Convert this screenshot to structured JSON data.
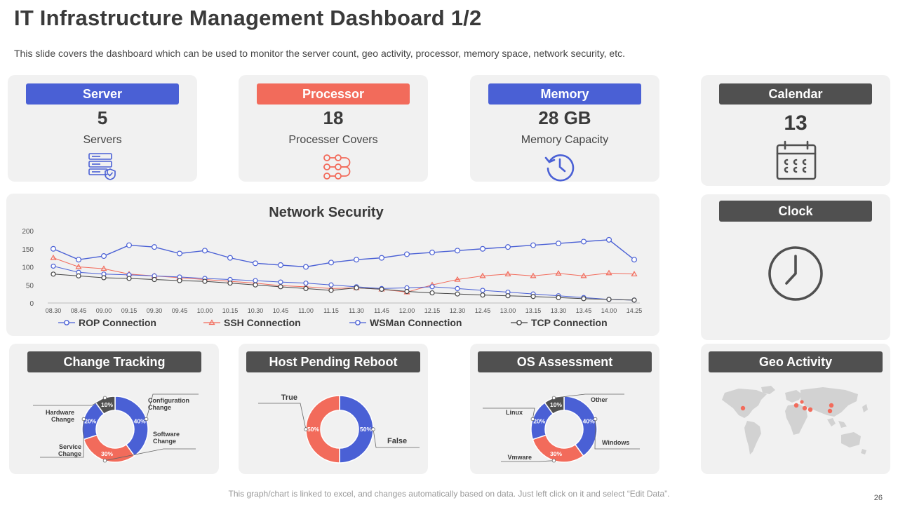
{
  "header": {
    "title": "IT Infrastructure Management Dashboard 1/2",
    "subtitle": "This slide covers the dashboard which can be used to monitor the server count, geo activity, processor, memory space, network security, etc."
  },
  "cards": {
    "server": {
      "label": "Server",
      "value": "5",
      "caption": "Servers",
      "icon": "server-shield-icon"
    },
    "processor": {
      "label": "Processor",
      "value": "18",
      "caption": "Processer Covers",
      "icon": "process-flow-icon"
    },
    "memory": {
      "label": "Memory",
      "value": "28 GB",
      "caption": "Memory Capacity",
      "icon": "history-icon"
    },
    "calendar": {
      "label": "Calendar",
      "value": "13",
      "icon": "calendar-icon"
    },
    "clock": {
      "label": "Clock",
      "icon": "clock-icon"
    },
    "change_tracking": {
      "label": "Change Tracking"
    },
    "host_pending_reboot": {
      "label": "Host Pending Reboot"
    },
    "os_assessment": {
      "label": "OS Assessment"
    },
    "geo_activity": {
      "label": "Geo Activity",
      "icon": "world-map-icon"
    }
  },
  "colors": {
    "blue": "#4a60d5",
    "red": "#f26b5b",
    "dark": "#505050",
    "gray": "#444444"
  },
  "chart_data": [
    {
      "type": "line",
      "title": "Network Security",
      "x": [
        "08.30",
        "08.45",
        "09.00",
        "09.15",
        "09.30",
        "09.45",
        "10.00",
        "10.15",
        "10.30",
        "10.45",
        "11.00",
        "11.15",
        "11.30",
        "11.45",
        "12.00",
        "12.15",
        "12.30",
        "12.45",
        "13.00",
        "13.15",
        "13.30",
        "13.45",
        "14.00",
        "14.25"
      ],
      "ylim": [
        0,
        200
      ],
      "yticks": [
        0,
        50,
        100,
        150,
        200
      ],
      "legend": "bottom",
      "series": [
        {
          "name": "ROP Connection",
          "color": "#4a60d5",
          "marker": "circle",
          "values": [
            150,
            120,
            130,
            160,
            155,
            137,
            145,
            125,
            110,
            105,
            100,
            112,
            120,
            125,
            135,
            140,
            145,
            150,
            155,
            160,
            165,
            170,
            175,
            120
          ]
        },
        {
          "name": "SSH Connection",
          "color": "#f26b5b",
          "marker": "triangle",
          "values": [
            125,
            100,
            95,
            80,
            75,
            70,
            65,
            60,
            55,
            48,
            45,
            40,
            42,
            38,
            30,
            50,
            65,
            75,
            80,
            75,
            82,
            75,
            83,
            80
          ]
        },
        {
          "name": "WSMan Connection",
          "color": "#4a60d5",
          "marker": "open-circle",
          "values": [
            102,
            85,
            80,
            78,
            75,
            72,
            68,
            65,
            62,
            58,
            55,
            50,
            45,
            40,
            42,
            45,
            40,
            35,
            30,
            25,
            20,
            15,
            10,
            8
          ]
        },
        {
          "name": "TCP Connection",
          "color": "#444444",
          "marker": "open-circle",
          "values": [
            80,
            75,
            70,
            68,
            65,
            62,
            60,
            55,
            50,
            45,
            40,
            35,
            42,
            38,
            32,
            28,
            25,
            22,
            20,
            18,
            15,
            12,
            10,
            8
          ]
        }
      ]
    },
    {
      "type": "pie",
      "title": "Change Tracking",
      "labels": [
        "Configuration Change",
        "Software Change",
        "Service Change",
        "Hardware Change"
      ],
      "values": [
        40,
        30,
        20,
        10
      ],
      "slice_labels": [
        "40%",
        "30%",
        "20%",
        "10%"
      ],
      "colors": [
        "#4a60d5",
        "#f26b5b",
        "#4a60d5",
        "#505050"
      ]
    },
    {
      "type": "pie",
      "title": "Host Pending Reboot",
      "labels": [
        "False",
        "True"
      ],
      "values": [
        50,
        50
      ],
      "slice_labels": [
        "50%",
        "50%"
      ],
      "colors": [
        "#4a60d5",
        "#f26b5b"
      ]
    },
    {
      "type": "pie",
      "title": "OS Assessment",
      "labels": [
        "Windows",
        "Vmware",
        "Linux",
        "Other"
      ],
      "values": [
        40,
        30,
        20,
        10
      ],
      "slice_labels": [
        "40%",
        "30%",
        "20%",
        "10%"
      ],
      "colors": [
        "#4a60d5",
        "#f26b5b",
        "#4a60d5",
        "#505050"
      ]
    }
  ],
  "footer": {
    "note": "This graph/chart is linked to excel, and changes automatically based on data. Just left click on it and select “Edit Data”.",
    "page": "26"
  }
}
